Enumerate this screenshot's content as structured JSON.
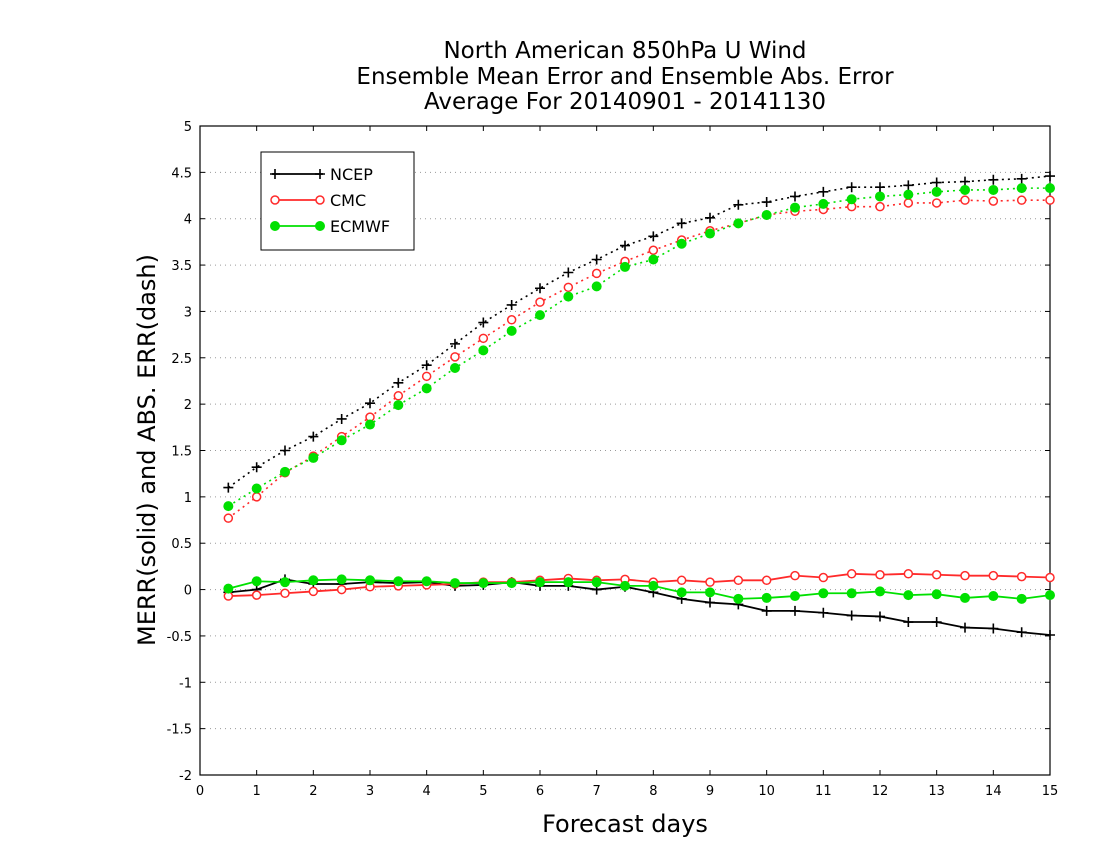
{
  "chart_data": {
    "type": "line",
    "title": [
      "North American 850hPa U Wind",
      "Ensemble Mean Error and Ensemble Abs. Error",
      "Average For 20140901 - 20141130"
    ],
    "xlabel": "Forecast days",
    "ylabel": "MERR(solid) and ABS. ERR(dash)",
    "xlim": [
      0,
      15
    ],
    "ylim": [
      -2,
      5
    ],
    "xticks": [
      "0",
      "1",
      "2",
      "3",
      "4",
      "5",
      "6",
      "7",
      "8",
      "9",
      "10",
      "11",
      "12",
      "13",
      "14",
      "15"
    ],
    "yticks": [
      "5",
      "4.5",
      "4",
      "3.5",
      "3",
      "2.5",
      "2",
      "1.5",
      "1",
      "0.5",
      "0",
      "-0.5",
      "-1",
      "-1.5",
      "-2"
    ],
    "grid": "horizontal dotted",
    "legend": "top-left",
    "x": [
      0.5,
      1,
      1.5,
      2,
      2.5,
      3,
      3.5,
      4,
      4.5,
      5,
      5.5,
      6,
      6.5,
      7,
      7.5,
      8,
      8.5,
      9,
      9.5,
      10,
      10.5,
      11,
      11.5,
      12,
      12.5,
      13,
      13.5,
      14,
      14.5,
      15
    ],
    "series": [
      {
        "name": "NCEP",
        "color": "#000000",
        "marker": "plus",
        "abs_err": [
          1.1,
          1.32,
          1.5,
          1.65,
          1.84,
          2.01,
          2.23,
          2.42,
          2.65,
          2.88,
          3.07,
          3.25,
          3.42,
          3.56,
          3.71,
          3.81,
          3.95,
          4.01,
          4.15,
          4.18,
          4.24,
          4.29,
          4.34,
          4.34,
          4.36,
          4.39,
          4.4,
          4.42,
          4.43,
          4.46
        ],
        "mean_err": [
          -0.03,
          0.0,
          0.11,
          0.06,
          0.06,
          0.08,
          0.07,
          0.08,
          0.04,
          0.05,
          0.08,
          0.04,
          0.04,
          0.0,
          0.03,
          -0.03,
          -0.1,
          -0.14,
          -0.16,
          -0.23,
          -0.23,
          -0.25,
          -0.28,
          -0.29,
          -0.35,
          -0.35,
          -0.41,
          -0.42,
          -0.46,
          -0.49
        ]
      },
      {
        "name": "CMC",
        "color": "#ff2a2a",
        "marker": "open-circle",
        "abs_err": [
          0.77,
          1.0,
          1.26,
          1.44,
          1.65,
          1.86,
          2.09,
          2.3,
          2.51,
          2.71,
          2.91,
          3.1,
          3.26,
          3.41,
          3.54,
          3.66,
          3.77,
          3.87,
          3.95,
          4.04,
          4.08,
          4.1,
          4.13,
          4.13,
          4.17,
          4.17,
          4.2,
          4.19,
          4.2,
          4.2
        ],
        "mean_err": [
          -0.07,
          -0.06,
          -0.04,
          -0.02,
          0.0,
          0.03,
          0.04,
          0.05,
          0.06,
          0.08,
          0.08,
          0.1,
          0.12,
          0.1,
          0.11,
          0.08,
          0.1,
          0.08,
          0.1,
          0.1,
          0.15,
          0.13,
          0.17,
          0.16,
          0.17,
          0.16,
          0.15,
          0.15,
          0.14,
          0.13
        ]
      },
      {
        "name": "ECMWF",
        "color": "#00e000",
        "marker": "filled-circle",
        "abs_err": [
          0.9,
          1.09,
          1.27,
          1.42,
          1.61,
          1.78,
          1.99,
          2.17,
          2.39,
          2.58,
          2.79,
          2.96,
          3.16,
          3.27,
          3.48,
          3.56,
          3.73,
          3.84,
          3.95,
          4.04,
          4.12,
          4.16,
          4.21,
          4.24,
          4.26,
          4.29,
          4.31,
          4.31,
          4.33,
          4.33
        ],
        "mean_err": [
          0.01,
          0.09,
          0.08,
          0.1,
          0.11,
          0.1,
          0.09,
          0.09,
          0.07,
          0.07,
          0.07,
          0.08,
          0.08,
          0.08,
          0.04,
          0.04,
          -0.03,
          -0.03,
          -0.1,
          -0.09,
          -0.07,
          -0.04,
          -0.04,
          -0.02,
          -0.06,
          -0.05,
          -0.09,
          -0.07,
          -0.1,
          -0.06
        ]
      }
    ]
  }
}
